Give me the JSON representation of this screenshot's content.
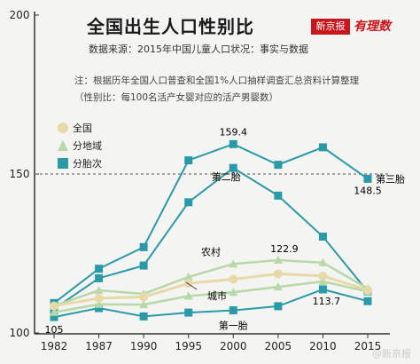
{
  "header": {
    "title": "全国出生人口性别比",
    "subtitle": "数据来源：2015年中国儿童人口状况：事实与数据",
    "note_line1": "注：根据历年全国人口普查和全国1%人口抽样调查汇总资料计算整理",
    "note_line2": "（性别比：每100名活产女婴对应的活产男婴数）",
    "logo_text": "新京报",
    "logo_script": "有理数"
  },
  "watermark": "@新京报",
  "colors": {
    "national": "#e7d9a8",
    "region": "#b8d8a8",
    "parity": "#2a9aa8",
    "axis": "#333333",
    "ref_line": "#555555"
  },
  "chart_data": {
    "type": "line",
    "x": [
      "1982",
      "1987",
      "1990",
      "1995",
      "2000",
      "2005",
      "2010",
      "2015"
    ],
    "ylim": [
      100,
      200
    ],
    "yticks": [
      100,
      150,
      200
    ],
    "reference_line": 150,
    "legend": [
      "全国",
      "分地域",
      "分胎次"
    ],
    "series": [
      {
        "name": "全国",
        "group": "national",
        "values": [
          108.5,
          110.9,
          111.3,
          115.6,
          116.9,
          118.6,
          117.9,
          113.5
        ]
      },
      {
        "name": "农村",
        "group": "region",
        "values": [
          108.5,
          113.4,
          112.3,
          117.6,
          121.7,
          122.9,
          122.1,
          114.0
        ]
      },
      {
        "name": "城市",
        "group": "region",
        "values": [
          106.5,
          109.0,
          108.9,
          111.6,
          112.8,
          114.5,
          116.2,
          113.0
        ]
      },
      {
        "name": "第一胎",
        "group": "parity",
        "values": [
          105.0,
          107.8,
          105.2,
          106.4,
          107.1,
          108.4,
          113.7,
          110.0
        ]
      },
      {
        "name": "第二胎",
        "group": "parity",
        "values": [
          107.6,
          117.2,
          121.2,
          141.1,
          151.9,
          143.2,
          130.3,
          113.0
        ]
      },
      {
        "name": "第三胎",
        "group": "parity",
        "values": [
          109.4,
          120.2,
          127.0,
          154.3,
          159.4,
          152.9,
          158.4,
          148.5
        ]
      }
    ],
    "labels": {
      "third": "第三胎",
      "second": "第二胎",
      "first": "第一胎",
      "rural": "农村",
      "urban": "城市",
      "peak_third": "159.4",
      "end_third": "148.5",
      "peak_rural": "122.9",
      "first_2010": "113.7",
      "first_1982": "105"
    }
  }
}
